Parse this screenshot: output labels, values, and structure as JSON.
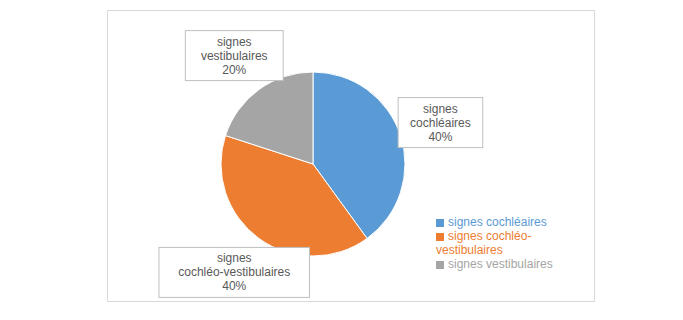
{
  "chart_data": {
    "type": "pie",
    "categories": [
      "signes cochléaires",
      "signes cochléo-vestibulaires",
      "signes vestibulaires"
    ],
    "values": [
      40,
      40,
      20
    ],
    "value_labels": [
      "40%",
      "40%",
      "20%"
    ],
    "colors": [
      "#5B9BD5",
      "#ED7D31",
      "#A5A5A5"
    ],
    "data_labels": true,
    "legend": "right"
  }
}
